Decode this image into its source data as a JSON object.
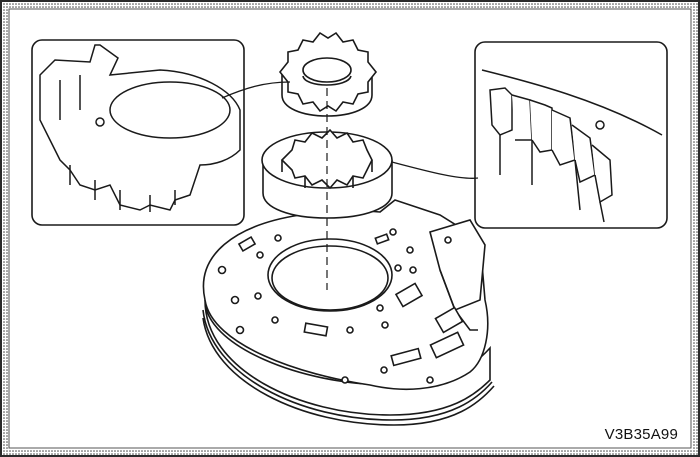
{
  "figure": {
    "code": "V3B35A99"
  },
  "colors": {
    "ink": "#1a1a1a",
    "paper": "#ffffff",
    "border": "#3a3a3a"
  }
}
